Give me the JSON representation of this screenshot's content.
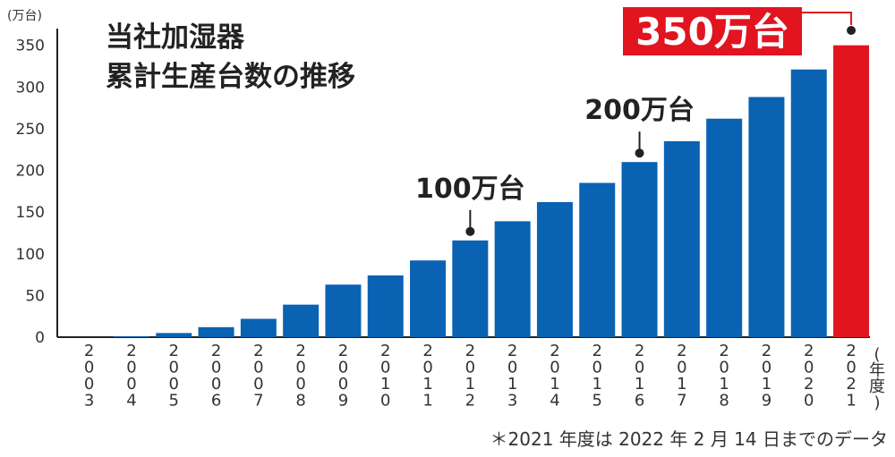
{
  "chart_data": {
    "type": "bar",
    "title_lines": [
      "当社加湿器",
      "累計生産台数の推移"
    ],
    "ylabel": "(万台)",
    "xlabel": "(年度)",
    "ylim": [
      0,
      370
    ],
    "yticks": [
      0,
      50,
      100,
      150,
      200,
      250,
      300,
      350
    ],
    "categories": [
      "2003",
      "2004",
      "2005",
      "2006",
      "2007",
      "2008",
      "2009",
      "2010",
      "2011",
      "2012",
      "2013",
      "2014",
      "2015",
      "2016",
      "2017",
      "2018",
      "2019",
      "2020",
      "2021"
    ],
    "values": [
      0,
      1,
      5,
      12,
      22,
      39,
      63,
      74,
      92,
      116,
      139,
      162,
      185,
      210,
      235,
      262,
      288,
      321,
      350
    ],
    "colors": {
      "bar": "#0a62b3",
      "highlight": "#e2141f",
      "axis": "#222222"
    },
    "highlight_index": 18,
    "milestones": [
      {
        "label": "100万台",
        "index": 9,
        "value": 116
      },
      {
        "label": "200万台",
        "index": 13,
        "value": 210
      }
    ],
    "highlight_label": "350万台"
  },
  "footnote": "＊2021 年度は 2022 年 2 月 14 日までのデータ"
}
